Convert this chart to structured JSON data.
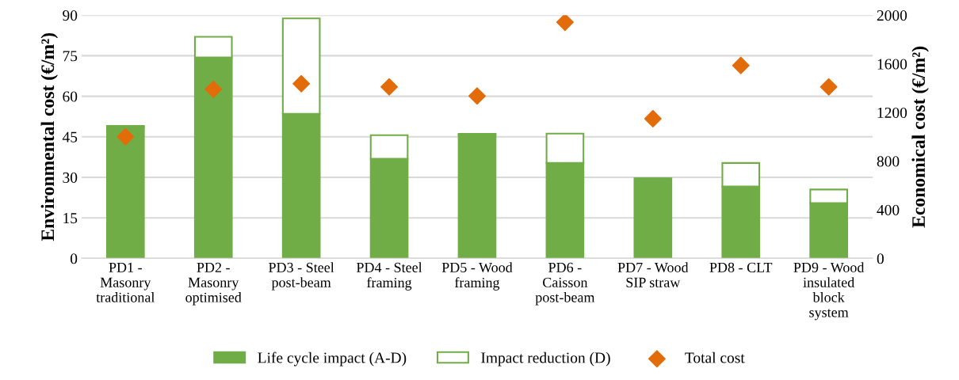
{
  "chart_data": {
    "type": "bar",
    "stacked": true,
    "categories": [
      "PD1 -\nMasonry\ntraditional",
      "PD2 -\nMasonry\noptimised",
      "PD3 - Steel\npost-beam",
      "PD4 - Steel\nframing",
      "PD5 - Wood\nframing",
      "PD6 -\nCaisson\npost-beam",
      "PD7 - Wood\nSIP straw",
      "PD8 - CLT",
      "PD9 - Wood\ninsulated\nblock\nsystem"
    ],
    "ylabel": "Environmental cost (€/m²)",
    "y2label": "Economical cost (€/m²)",
    "ylim": [
      0,
      90
    ],
    "yticks": [
      0,
      15,
      30,
      45,
      60,
      75,
      90
    ],
    "y2lim": [
      0,
      2000
    ],
    "y2ticks": [
      0,
      400,
      800,
      1200,
      1600,
      2000
    ],
    "grid": "y",
    "legend": "bottom",
    "series": [
      {
        "name": "Life cycle impact (A-D)",
        "color": "#70ad47",
        "values": [
          48.6,
          74.4,
          53.5,
          36.9,
          45.6,
          35.3,
          29.6,
          26.6,
          20.5
        ]
      },
      {
        "name": "Impact reduction (D)",
        "color": "#70ad47",
        "values": [
          0.4,
          7.6,
          35.3,
          8.7,
          0.5,
          10.9,
          0,
          8.7,
          5.0
        ]
      },
      {
        "name": "Total cost",
        "type": "scatter",
        "axis": "y2",
        "marker": "diamond",
        "color": "#e36c0a",
        "values": [
          1000,
          1391,
          1436,
          1411,
          1336,
          1942,
          1149,
          1587,
          1411
        ]
      }
    ]
  }
}
